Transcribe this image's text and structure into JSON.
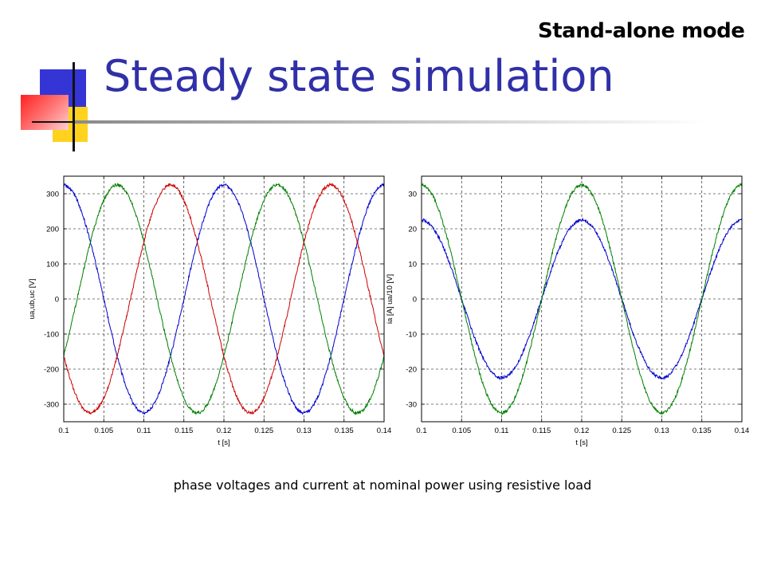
{
  "slide": {
    "title": "Steady state simulation",
    "mode_label": "Stand-alone mode",
    "caption": "phase voltages and current at nominal power using resistive load",
    "decoration": {
      "blue": "#3535d6",
      "yellow": "#ffd21e",
      "red": "#ff2020",
      "title_color": "#3030a8"
    }
  },
  "chart_data": [
    {
      "type": "line",
      "title": "",
      "xlabel": "t [s]",
      "ylabel": "ua,ub,uc [V]",
      "xlim": [
        0.1,
        0.14
      ],
      "ylim": [
        -350,
        350
      ],
      "xticks": [
        0.1,
        0.105,
        0.11,
        0.115,
        0.12,
        0.125,
        0.13,
        0.135,
        0.14
      ],
      "yticks": [
        -300,
        -200,
        -100,
        0,
        100,
        200,
        300
      ],
      "grid": true,
      "series": [
        {
          "color": "#0000cc",
          "amplitude": 325,
          "frequency_hz": 50,
          "phase_deg": 90
        },
        {
          "color": "#007f00",
          "amplitude": 325,
          "frequency_hz": 50,
          "phase_deg": -30
        },
        {
          "color": "#cc0000",
          "amplitude": 325,
          "frequency_hz": 50,
          "phase_deg": 210
        }
      ]
    },
    {
      "type": "line",
      "title": "",
      "xlabel": "t [s]",
      "ylabel": "ia [A]  ua/10 [V]",
      "xlim": [
        0.1,
        0.14
      ],
      "ylim": [
        -35,
        35
      ],
      "xticks": [
        0.1,
        0.105,
        0.11,
        0.115,
        0.12,
        0.125,
        0.13,
        0.135,
        0.14
      ],
      "yticks": [
        -30,
        -20,
        -10,
        0,
        10,
        20,
        30
      ],
      "grid": true,
      "series": [
        {
          "color": "#0000cc",
          "amplitude": 22.5,
          "frequency_hz": 50,
          "phase_deg": 90
        },
        {
          "color": "#007f00",
          "amplitude": 32.5,
          "frequency_hz": 50,
          "phase_deg": 90
        }
      ]
    }
  ]
}
